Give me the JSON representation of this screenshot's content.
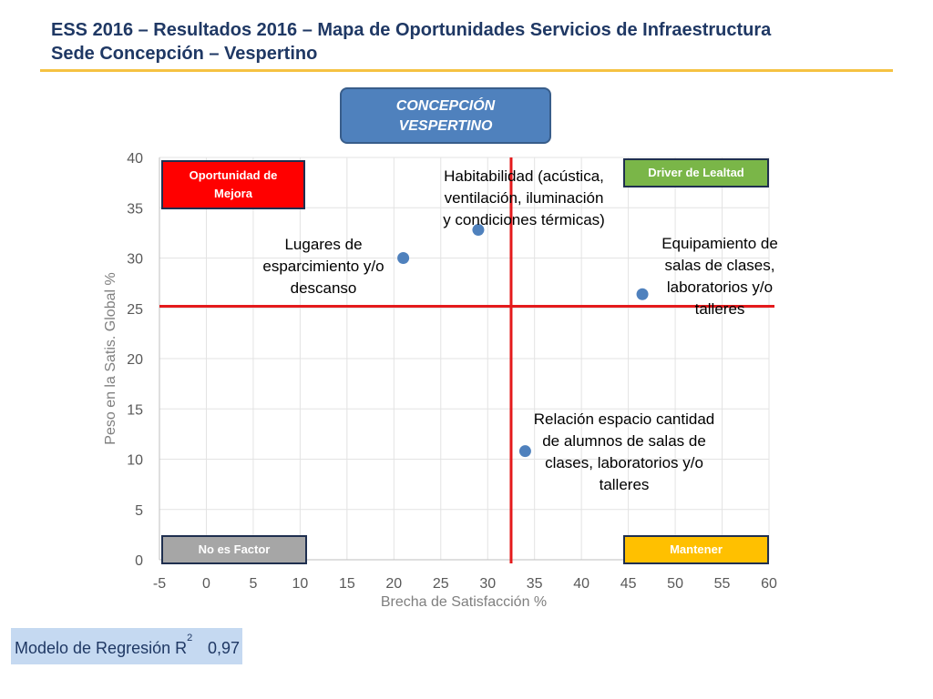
{
  "header": {
    "title_line1": "ESS 2016 – Resultados 2016 – Mapa de Oportunidades Servicios de Infraestructura",
    "title_line2": "Sede Concepción – Vespertino",
    "accent_color": "#f5c242"
  },
  "badge": {
    "line1": "CONCEPCIÓN",
    "line2": "VESPERTINO",
    "color": "#4f81bd"
  },
  "quadrants": {
    "top_left": {
      "line1": "Oportunidad de",
      "line2": "Mejora",
      "color": "#ff0000"
    },
    "top_right": {
      "label": "Driver de Lealtad",
      "color": "#7ab648"
    },
    "bottom_left": {
      "label": "No es Factor",
      "color": "#a6a6a6"
    },
    "bottom_right": {
      "label": "Mantener",
      "color": "#ffc000"
    }
  },
  "point_labels": {
    "p1": {
      "line1": "Habitabilidad (acústica,",
      "line2": "ventilación, iluminación",
      "line3": "y condiciones térmicas)"
    },
    "p2": {
      "line1": "Lugares de",
      "line2": "esparcimiento y/o",
      "line3": "descanso"
    },
    "p3": {
      "line1": "Equipamiento de",
      "line2": "salas de clases,",
      "line3": "laboratorios y/o",
      "line4": "talleres"
    },
    "p4": {
      "line1": "Relación espacio cantidad",
      "line2": "de alumnos de salas de",
      "line3": "clases, laboratorios y/o",
      "line4": "talleres"
    }
  },
  "regression": {
    "label": "Modelo de Regresión R",
    "superscript": "2",
    "value": "0,97"
  },
  "chart_data": {
    "type": "scatter",
    "xlabel": "Brecha de Satisfacción %",
    "ylabel": "Peso en la Satis. Global %",
    "xlim": [
      -5,
      60
    ],
    "ylim": [
      0,
      40
    ],
    "x_ticks": [
      -5,
      0,
      5,
      10,
      15,
      20,
      25,
      30,
      35,
      40,
      45,
      50,
      55,
      60
    ],
    "y_ticks": [
      0,
      5,
      10,
      15,
      20,
      25,
      30,
      35,
      40
    ],
    "grid": true,
    "point_color": "#4f81bd",
    "reference_lines": {
      "x": 32.5,
      "y": 25.2,
      "color": "#e41a1c"
    },
    "points": [
      {
        "x": 29,
        "y": 32.8
      },
      {
        "x": 21,
        "y": 30
      },
      {
        "x": 46.5,
        "y": 26.4
      },
      {
        "x": 34,
        "y": 10.8
      }
    ]
  }
}
